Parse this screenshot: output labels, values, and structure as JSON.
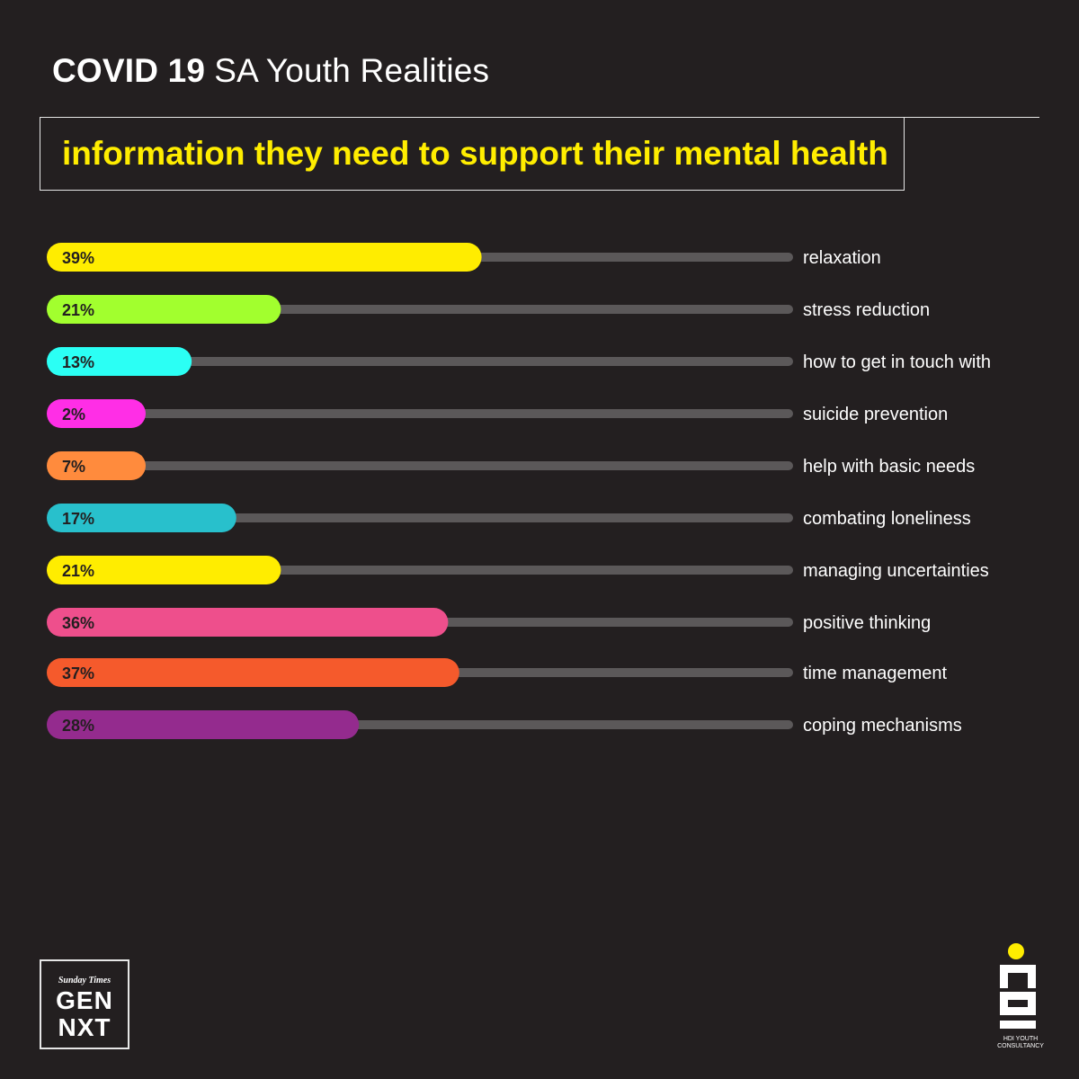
{
  "header": {
    "title_bold": "COVID 19",
    "title_light": "SA Youth Realities"
  },
  "chart_data": {
    "type": "bar",
    "orientation": "horizontal",
    "title": "information they need to support their mental health",
    "categories": [
      "relaxation",
      "stress reduction",
      "how to get in touch with",
      "suicide prevention",
      "help with basic needs",
      "combating loneliness",
      "managing uncertainties",
      "positive thinking",
      "time management",
      "coping mechanisms"
    ],
    "values": [
      39,
      21,
      13,
      2,
      7,
      17,
      21,
      36,
      37,
      28
    ],
    "value_labels": [
      "39%",
      "21%",
      "13%",
      "2%",
      "7%",
      "17%",
      "21%",
      "36%",
      "37%",
      "28%"
    ],
    "colors": [
      "#ffed00",
      "#a2ff2e",
      "#2bfff4",
      "#ff2ee6",
      "#ff8b3d",
      "#28c0cc",
      "#ffed00",
      "#ee4f8c",
      "#f55a2c",
      "#942b8e"
    ],
    "track_color": "#5b5859",
    "xlim": [
      0,
      100
    ],
    "grid": false,
    "legend": "none"
  },
  "footer": {
    "left_logo_small": "Sunday Times",
    "left_logo_line1": "GEN",
    "left_logo_line2": "NXT",
    "right_logo_caption_line1": "HDI YOUTH",
    "right_logo_caption_line2": "CONSULTANCY"
  }
}
